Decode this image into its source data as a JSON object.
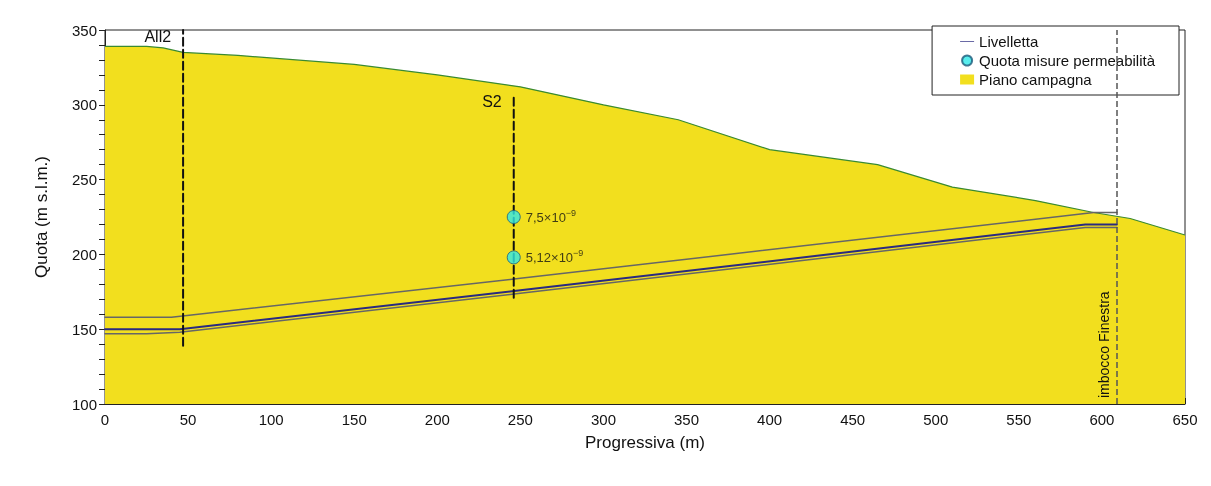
{
  "chart_data": {
    "type": "line",
    "xlabel": "Progressiva (m)",
    "ylabel": "Quota (m s.l.m.)",
    "xlim": [
      0,
      650
    ],
    "xticks": [
      0,
      50,
      100,
      150,
      200,
      250,
      300,
      350,
      400,
      450,
      500,
      550,
      600,
      650
    ],
    "ylim": [
      100,
      350
    ],
    "yticks": [
      100,
      150,
      200,
      250,
      300,
      350
    ],
    "grid": false,
    "legend": "top right",
    "series": [
      {
        "name": "Livelletta",
        "color": "#2a2a80",
        "x": [
          0,
          45,
          250,
          590,
          609
        ],
        "values": [
          150,
          150,
          176,
          220,
          220
        ]
      },
      {
        "name": "Quota misure permeabilità",
        "type": "scatter",
        "color": "#2ee8e8",
        "marker": "circle",
        "x": [
          246,
          246
        ],
        "values": [
          225,
          198
        ],
        "value_labels": [
          "7,5×10$^{−9}$",
          "5,12×10$^{−9}$"
        ]
      },
      {
        "name": "Piano campagna",
        "type": "area",
        "color": "#f2df1e",
        "x": [
          0,
          25,
          35,
          47,
          80,
          150,
          200,
          250,
          300,
          345,
          400,
          465,
          510,
          560,
          595,
          617,
          650
        ],
        "values": [
          339,
          339,
          338,
          335,
          333,
          327,
          320,
          312,
          300,
          290,
          270,
          260,
          245,
          236,
          228,
          224,
          213
        ]
      },
      {
        "color": "#666666",
        "x": [
          0,
          40,
          250,
          595,
          609
        ],
        "values": [
          158,
          158,
          184,
          228,
          228
        ]
      },
      {
        "color": "#666666",
        "x": [
          0,
          25,
          45,
          250,
          590,
          609
        ],
        "values": [
          147,
          147,
          148,
          174,
          218,
          218
        ]
      },
      {
        "color": "#111111",
        "line_style": "dashed",
        "x": [
          47,
          47
        ],
        "values": [
          139,
          350
        ]
      },
      {
        "color": "#111111",
        "line_style": "dashed",
        "x": [
          246,
          246
        ],
        "values": [
          171,
          306
        ]
      }
    ],
    "ref_lines": [
      {
        "axis": "x",
        "value": 609,
        "label": "imbocco Finestra",
        "color": "#555555",
        "line_style": "dashed"
      }
    ],
    "annotations": [
      {
        "text": "All2",
        "x": 47,
        "y": 350
      },
      {
        "text": "S2",
        "x": 246,
        "y": 306
      }
    ]
  }
}
